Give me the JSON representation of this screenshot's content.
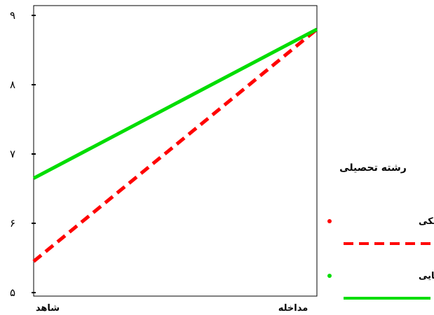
{
  "chart_data": {
    "type": "line",
    "categories": [
      "شاهد",
      "مداخله"
    ],
    "y_ticks": [
      "۵",
      "۶",
      "۷",
      "۸",
      "۹"
    ],
    "ylim": [
      5,
      9
    ],
    "grid": false,
    "legend_position": "right",
    "legend_title": "رشته تحصیلی",
    "series": [
      {
        "name": "دانشجوی پزشکی",
        "values": [
          5.45,
          8.8
        ],
        "color": "#ff0000",
        "dash": "dashed"
      },
      {
        "name": "دانشجوی مامایی",
        "values": [
          6.65,
          8.8
        ],
        "color": "#00dd00",
        "dash": "solid"
      }
    ]
  }
}
